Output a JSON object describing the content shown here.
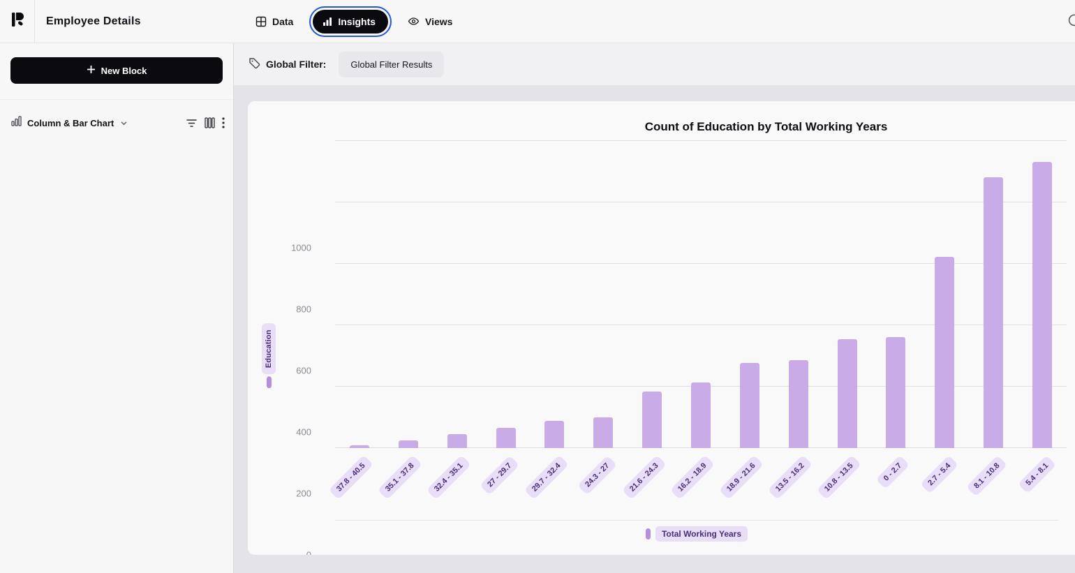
{
  "header": {
    "title": "Employee Details",
    "tabs": [
      {
        "label": "Data",
        "icon": "grid-icon",
        "active": false
      },
      {
        "label": "Insights",
        "icon": "bar-chart-icon",
        "active": true
      },
      {
        "label": "Views",
        "icon": "eye-icon",
        "active": false
      }
    ]
  },
  "sidebar": {
    "new_block_label": "New Block",
    "block_type": "Column & Bar Chart",
    "tools": [
      "filter-icon",
      "columns-icon",
      "kebab-menu-icon"
    ]
  },
  "filter_bar": {
    "label": "Global Filter:",
    "chip_label": "Global Filter Results"
  },
  "chart_data": {
    "type": "bar",
    "title": "Count of Education by Total Working Years",
    "ylabel": "Education",
    "legend": [
      "Total Working Years"
    ],
    "categories": [
      "37.8 - 40.5",
      "35.1 - 37.8",
      "32.4 - 35.1",
      "27 - 29.7",
      "29.7 - 32.4",
      "24.3 - 27",
      "21.6 - 24.3",
      "16.2 - 18.9",
      "18.9 - 21.6",
      "13.5 - 16.2",
      "10.8 - 13.5",
      "0 - 2.7",
      "2.7 - 5.4",
      "8.1 - 10.8",
      "5.4 - 8.1"
    ],
    "values": [
      8,
      25,
      45,
      66,
      89,
      100,
      184,
      214,
      277,
      287,
      354,
      362,
      622,
      881,
      932
    ],
    "ylim": [
      0,
      1000
    ],
    "yticks": [
      0,
      200,
      400,
      600,
      800,
      1000
    ],
    "grid": true,
    "legend_position": "bottom",
    "bar_color": "#c9abe8",
    "accent_color": "#b48fe0"
  }
}
